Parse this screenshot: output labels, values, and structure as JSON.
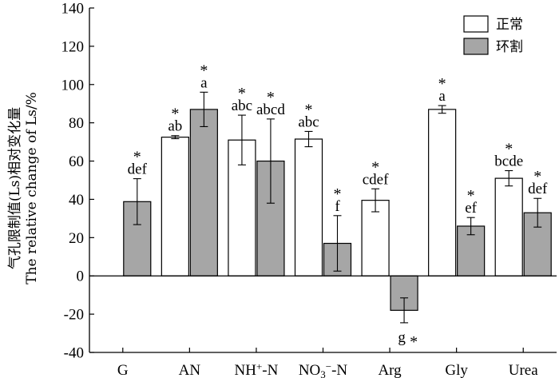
{
  "chart_data": {
    "type": "bar",
    "ylabel_line1": "气孔限制值(Ls)相对变化量",
    "ylabel_line2": "The relative change of Ls/%",
    "ylim": [
      -40,
      140
    ],
    "yticks": [
      -40,
      -20,
      0,
      20,
      40,
      60,
      80,
      100,
      120,
      140
    ],
    "categories": [
      {
        "text": "G"
      },
      {
        "text": "AN"
      },
      {
        "text": "NH",
        "sup": "+",
        "after": "-N"
      },
      {
        "text": "NO",
        "sub": "3",
        "sup": "−",
        "after": "-N"
      },
      {
        "text": "Arg"
      },
      {
        "text": "Gly"
      },
      {
        "text": "Urea"
      }
    ],
    "series": [
      {
        "name": "正常",
        "color": "#ffffff",
        "values": [
          null,
          72.5,
          71,
          71.5,
          39.5,
          87,
          51
        ],
        "errors": [
          null,
          0.8,
          13,
          4,
          6,
          2,
          4
        ],
        "letters": [
          "",
          "ab",
          "abc",
          "abc",
          "cdef",
          "a",
          "bcde"
        ],
        "stars": [
          "",
          "*",
          "*",
          "*",
          "*",
          "*",
          "*"
        ]
      },
      {
        "name": "环割",
        "color": "#a6a6a6",
        "values": [
          38.8,
          87,
          60,
          17,
          -18,
          26,
          33
        ],
        "errors": [
          12,
          9,
          22,
          14.5,
          6.5,
          4.5,
          7.5
        ],
        "letters": [
          "def",
          "a",
          "abcd",
          "f",
          "g",
          "ef",
          "def"
        ],
        "stars": [
          "*",
          "*",
          "*",
          "*",
          "*",
          "*",
          "*"
        ]
      }
    ]
  }
}
